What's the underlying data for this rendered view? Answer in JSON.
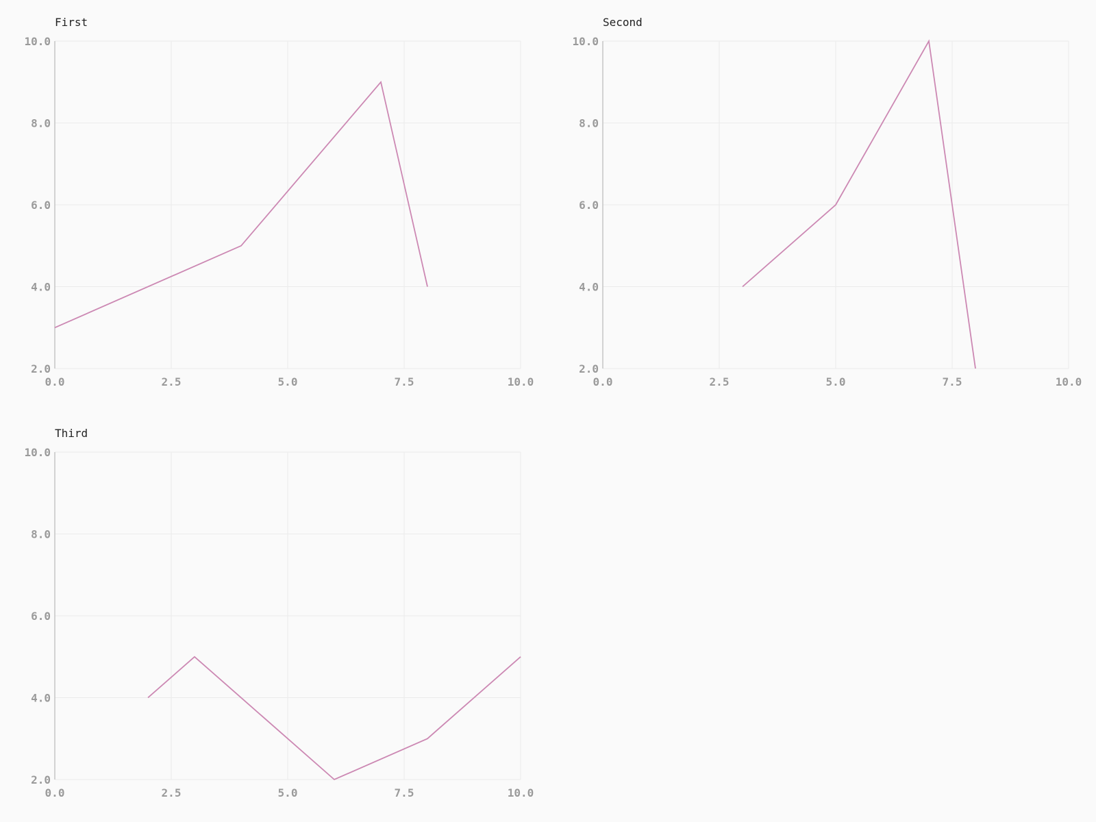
{
  "style": {
    "line_color": "#cc88b3",
    "background": "#fafafa",
    "grid_color": "#ebebeb",
    "axis_color": "#c4c4c4",
    "tick_color": "#9a9a9a"
  },
  "chart_data": [
    {
      "type": "line",
      "title": "First",
      "xlim": [
        0,
        10
      ],
      "ylim": [
        2,
        10
      ],
      "xticks": [
        "0.0",
        "2.5",
        "5.0",
        "7.5",
        "10.0"
      ],
      "yticks": [
        "2.0",
        "4.0",
        "6.0",
        "8.0",
        "10.0"
      ],
      "grid": true,
      "series": [
        {
          "x": [
            0,
            4,
            7,
            8
          ],
          "y": [
            3,
            5,
            9,
            4
          ]
        }
      ]
    },
    {
      "type": "line",
      "title": "Second",
      "xlim": [
        0,
        10
      ],
      "ylim": [
        2,
        10
      ],
      "xticks": [
        "0.0",
        "2.5",
        "5.0",
        "7.5",
        "10.0"
      ],
      "yticks": [
        "2.0",
        "4.0",
        "6.0",
        "8.0",
        "10.0"
      ],
      "grid": true,
      "series": [
        {
          "x": [
            3,
            5,
            7,
            8
          ],
          "y": [
            4,
            6,
            10,
            2
          ]
        }
      ]
    },
    {
      "type": "line",
      "title": "Third",
      "xlim": [
        0,
        10
      ],
      "ylim": [
        2,
        10
      ],
      "xticks": [
        "0.0",
        "2.5",
        "5.0",
        "7.5",
        "10.0"
      ],
      "yticks": [
        "2.0",
        "4.0",
        "6.0",
        "8.0",
        "10.0"
      ],
      "grid": true,
      "series": [
        {
          "x": [
            2,
            3,
            6,
            8,
            10
          ],
          "y": [
            4,
            5,
            2,
            3,
            5
          ]
        }
      ]
    }
  ]
}
